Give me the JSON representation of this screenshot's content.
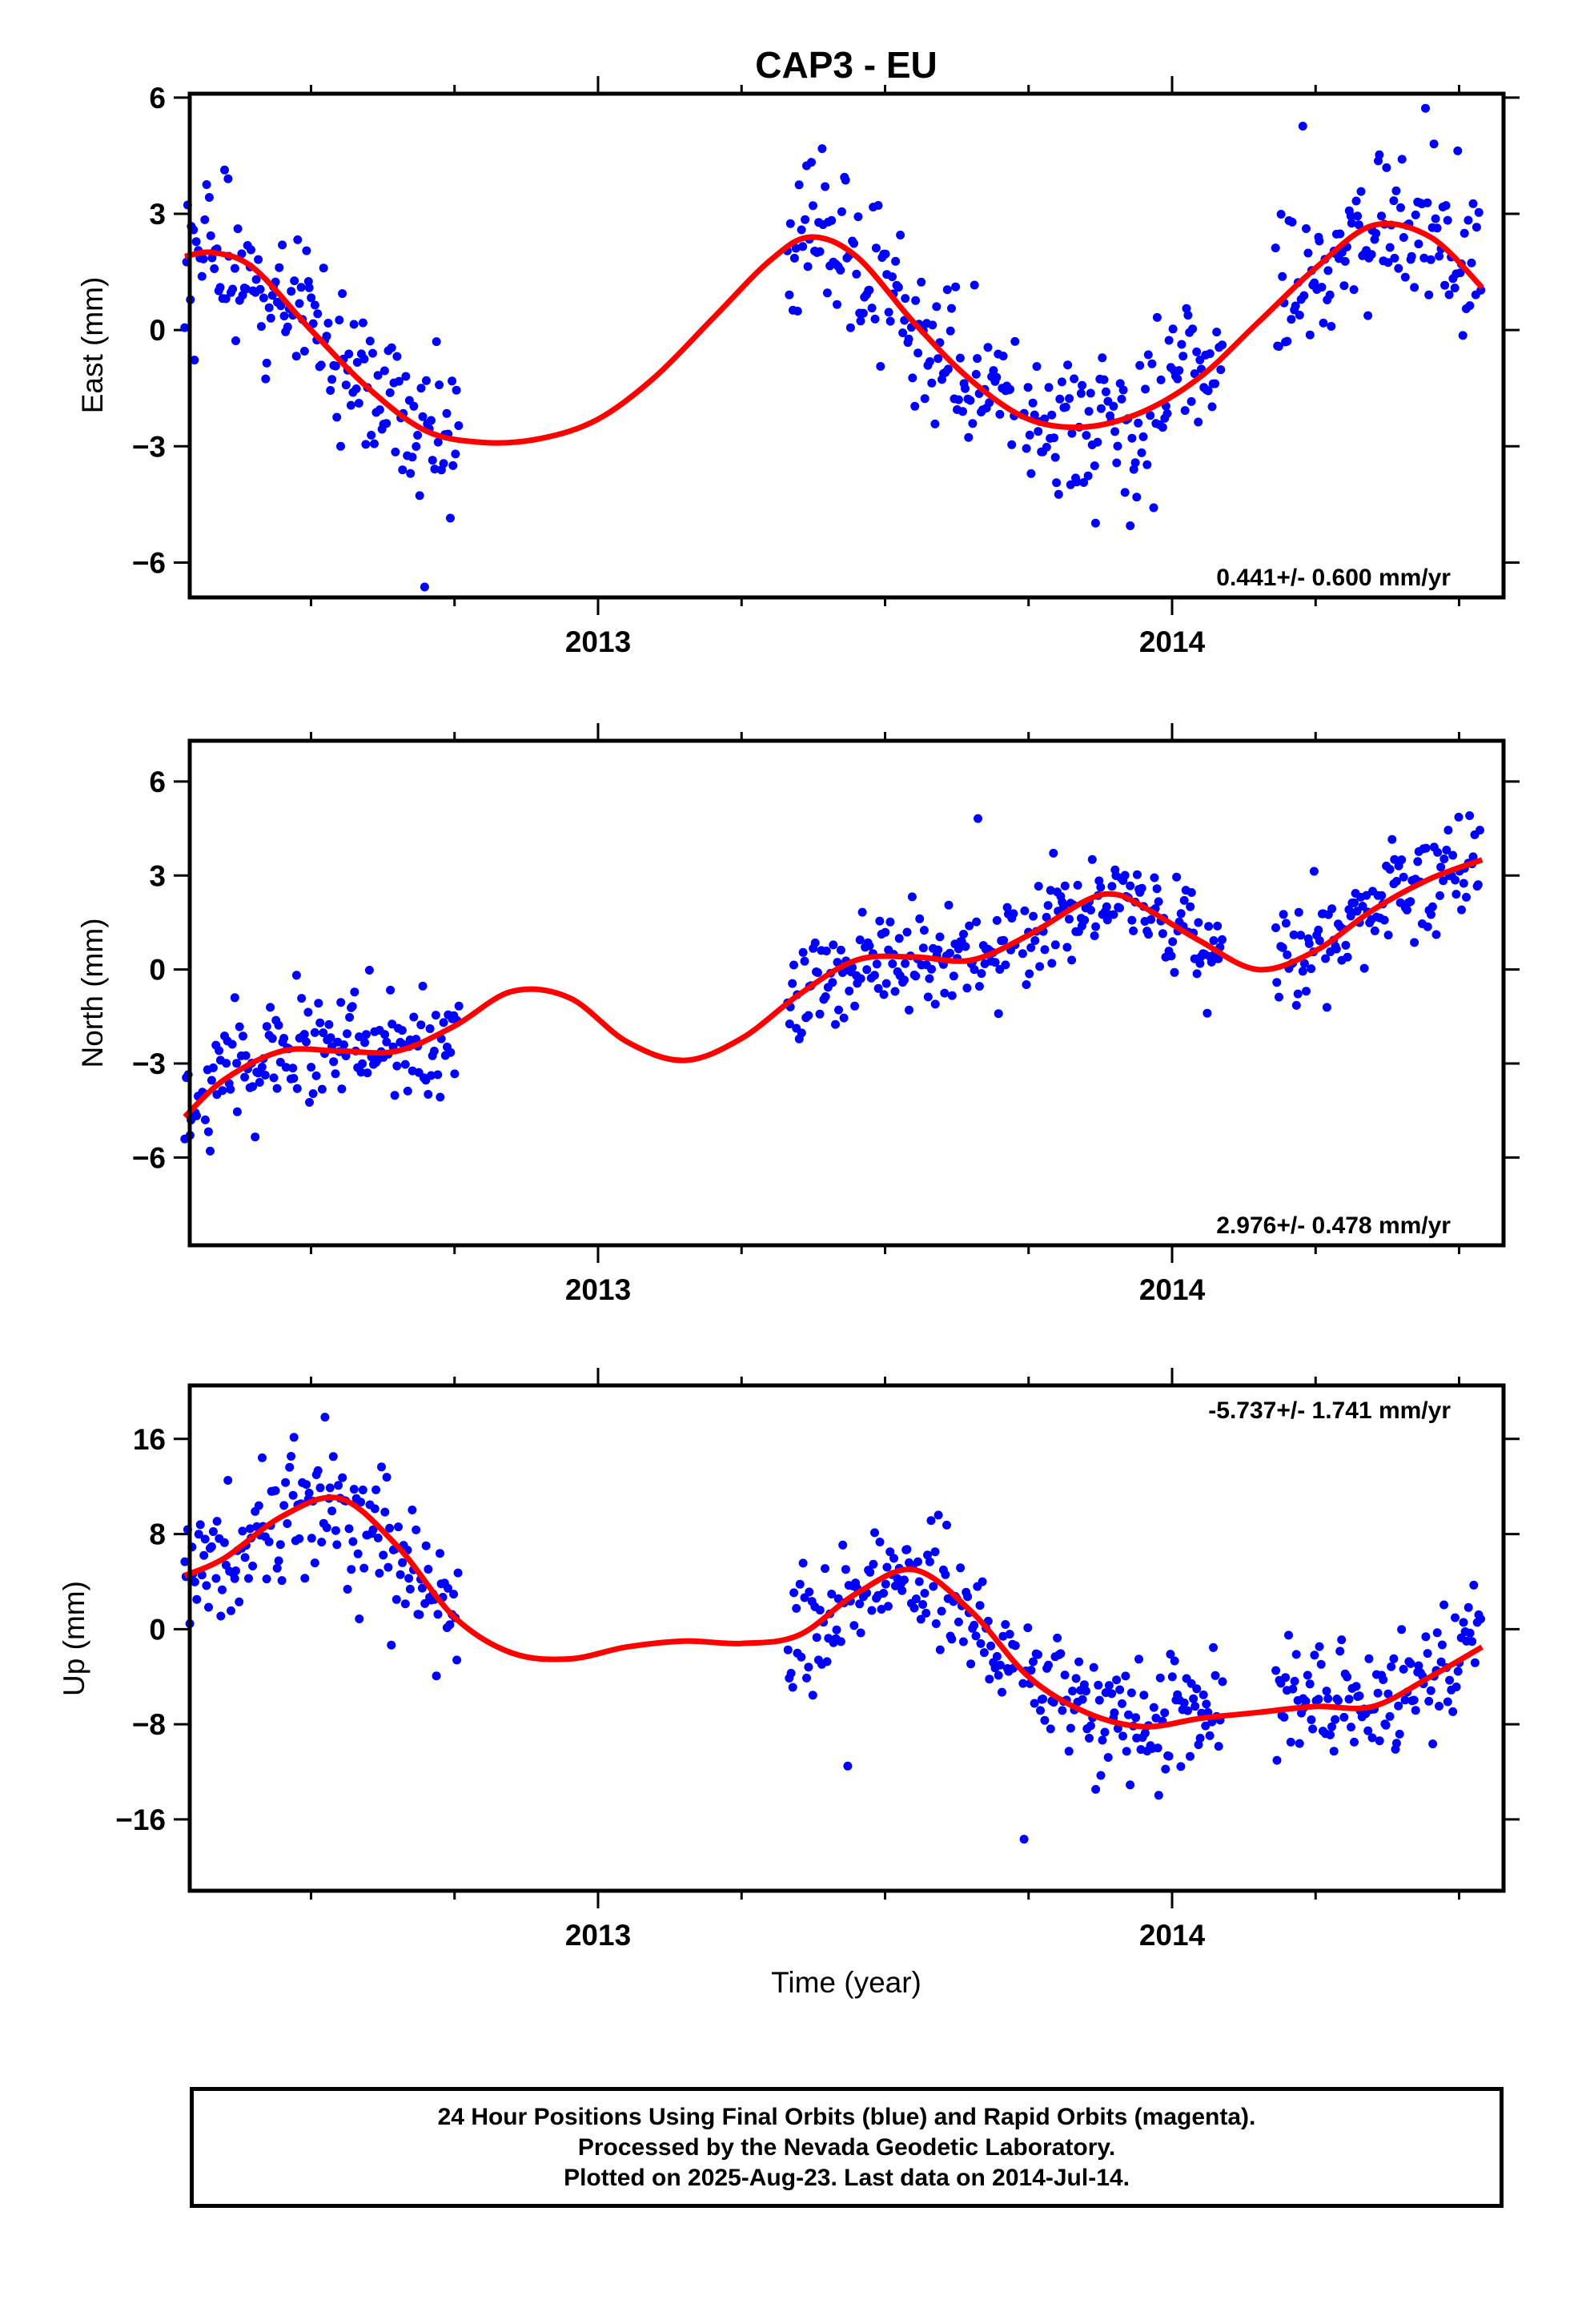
{
  "chart_data": {
    "title": "CAP3 - EU",
    "xlabel": "Time (year)",
    "x_tick_labels": [
      "2013",
      "2014"
    ],
    "colors": {
      "final_orbits": "#0000ff",
      "model_fit": "#ff0000"
    },
    "panels": [
      {
        "name": "east",
        "type": "scatter",
        "ylabel": "East (mm)",
        "ylim": [
          -6.9,
          6.1
        ],
        "yticks": [
          -6,
          -3,
          0,
          3,
          6
        ],
        "rate_label": "0.441+/- 0.600 mm/yr",
        "data_segments": [
          [
            2012.28,
            2012.76
          ],
          [
            2013.33,
            2013.73
          ],
          [
            2013.74,
            2014.09
          ],
          [
            2014.18,
            2014.54
          ]
        ],
        "wiggle": 1.8,
        "fit": {
          "x": [
            2012.28,
            2012.33,
            2012.4,
            2012.5,
            2012.6,
            2012.7,
            2012.8,
            2012.9,
            2013.0,
            2013.1,
            2013.2,
            2013.3,
            2013.37,
            2013.45,
            2013.55,
            2013.65,
            2013.75,
            2013.85,
            2013.95,
            2014.05,
            2014.15,
            2014.25,
            2014.35,
            2014.45,
            2014.54
          ],
          "y": [
            1.9,
            2.0,
            1.6,
            0.0,
            -1.5,
            -2.6,
            -2.9,
            -2.8,
            -2.3,
            -1.2,
            0.3,
            1.8,
            2.4,
            1.9,
            0.2,
            -1.3,
            -2.3,
            -2.5,
            -2.1,
            -1.2,
            0.2,
            1.6,
            2.7,
            2.4,
            1.1
          ]
        }
      },
      {
        "name": "north",
        "type": "scatter",
        "ylabel": "North (mm)",
        "ylim": [
          -8.8,
          7.3
        ],
        "yticks": [
          -6,
          -3,
          0,
          3,
          6
        ],
        "rate_label": "2.976+/- 0.478 mm/yr",
        "data_segments": [
          [
            2012.28,
            2012.76
          ],
          [
            2013.33,
            2013.73
          ],
          [
            2013.74,
            2014.09
          ],
          [
            2014.18,
            2014.54
          ]
        ],
        "wiggle": 1.5,
        "fit": {
          "x": [
            2012.28,
            2012.35,
            2012.45,
            2012.55,
            2012.65,
            2012.75,
            2012.85,
            2012.95,
            2013.05,
            2013.15,
            2013.25,
            2013.35,
            2013.45,
            2013.55,
            2013.65,
            2013.75,
            2013.85,
            2013.9,
            2013.95,
            2014.05,
            2014.15,
            2014.25,
            2014.35,
            2014.45,
            2014.54
          ],
          "y": [
            -4.7,
            -3.5,
            -2.6,
            -2.6,
            -2.6,
            -1.8,
            -0.7,
            -0.9,
            -2.3,
            -2.9,
            -2.2,
            -0.8,
            0.3,
            0.4,
            0.3,
            1.1,
            2.2,
            2.4,
            2.0,
            0.9,
            0.0,
            0.6,
            1.9,
            2.9,
            3.5
          ]
        }
      },
      {
        "name": "up",
        "type": "scatter",
        "ylabel": "Up (mm)",
        "ylim": [
          -22,
          20.5
        ],
        "yticks": [
          -16,
          -8,
          0,
          8,
          16
        ],
        "rate_label": "-5.737+/- 1.741 mm/yr",
        "data_segments": [
          [
            2012.28,
            2012.76
          ],
          [
            2013.33,
            2013.73
          ],
          [
            2013.74,
            2014.09
          ],
          [
            2014.18,
            2014.54
          ]
        ],
        "wiggle": 4.5,
        "fit": {
          "x": [
            2012.28,
            2012.35,
            2012.45,
            2012.55,
            2012.65,
            2012.75,
            2012.85,
            2012.95,
            2013.05,
            2013.15,
            2013.25,
            2013.35,
            2013.45,
            2013.55,
            2013.65,
            2013.75,
            2013.85,
            2013.95,
            2014.05,
            2014.15,
            2014.25,
            2014.35,
            2014.45,
            2014.54
          ],
          "y": [
            4.5,
            6.0,
            9.5,
            11.0,
            7.0,
            1.0,
            -2.0,
            -2.5,
            -1.5,
            -1.0,
            -1.2,
            -0.5,
            3.0,
            5.0,
            1.5,
            -4.0,
            -7.0,
            -8.2,
            -7.5,
            -7.0,
            -6.5,
            -6.5,
            -4.0,
            -1.5
          ]
        }
      }
    ]
  },
  "footer": {
    "line1": "24 Hour Positions Using Final Orbits (blue) and Rapid Orbits (magenta).",
    "line2": "Processed by the Nevada Geodetic Laboratory.",
    "line3": "Plotted on 2025-Aug-23. Last data on 2014-Jul-14."
  }
}
